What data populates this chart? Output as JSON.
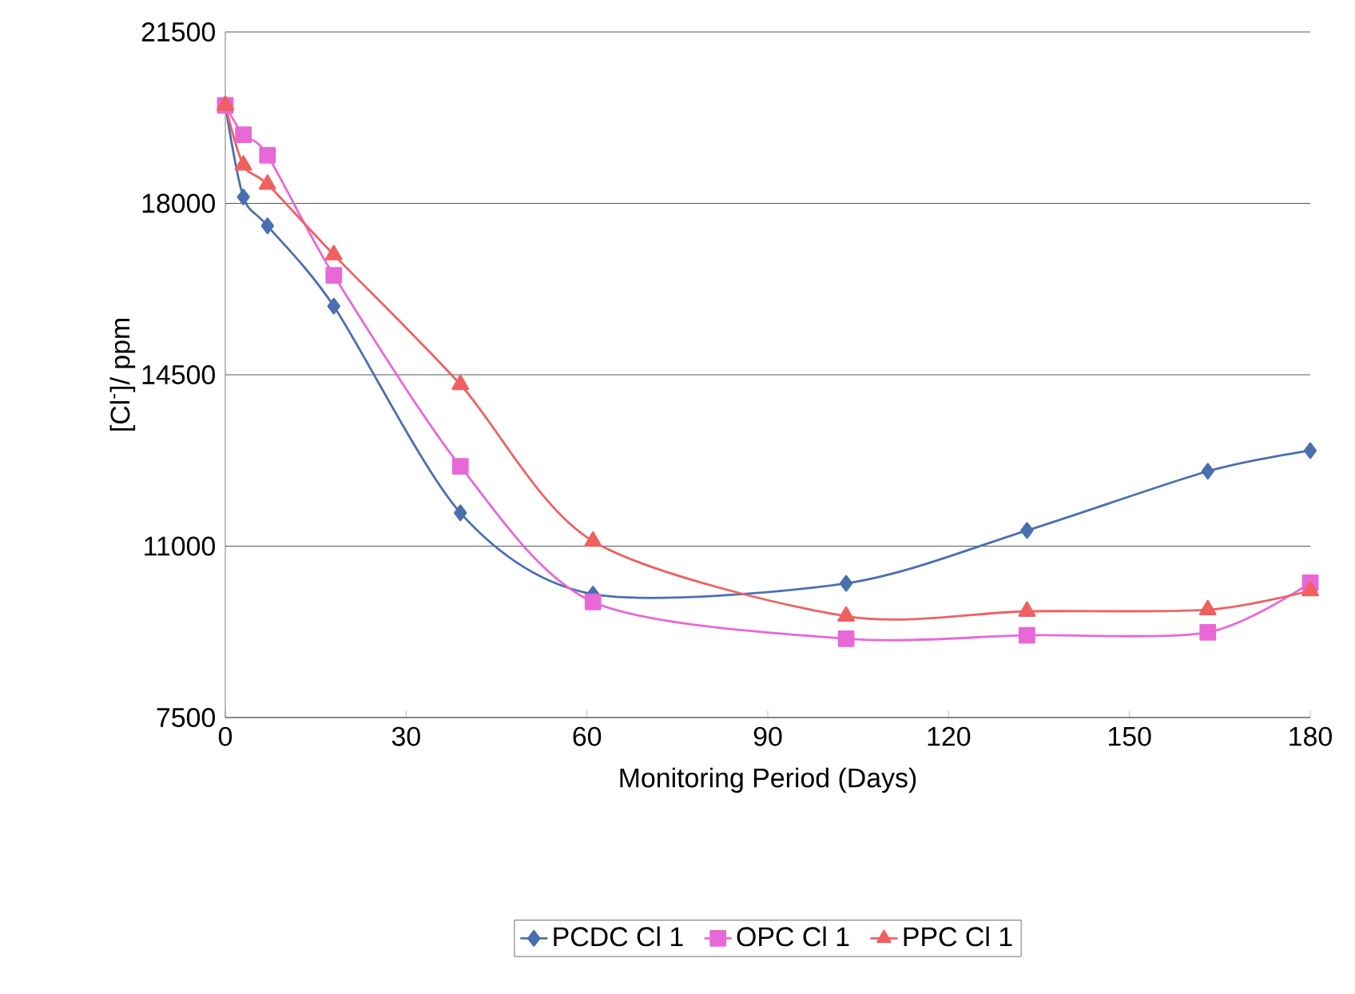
{
  "chart_data": {
    "type": "line",
    "xlabel": "Monitoring Period (Days)",
    "ylabel": "[Cl$^{-}$]/ ppm",
    "x": [
      0,
      3,
      7,
      18,
      39,
      61,
      103,
      133,
      163,
      180
    ],
    "series": [
      {
        "name": "PCDC Cl 1",
        "color": "#4a6fb0",
        "marker": "diamond",
        "values": [
          20000,
          18130,
          17540,
          15900,
          11680,
          10020,
          10240,
          11320,
          12530,
          12950
        ]
      },
      {
        "name": "OPC Cl 1",
        "color": "#e868d8",
        "marker": "square",
        "values": [
          20000,
          19400,
          18980,
          16530,
          12630,
          9860,
          9110,
          9180,
          9240,
          10250
        ]
      },
      {
        "name": "PPC Cl 1",
        "color": "#f06060",
        "marker": "triangle",
        "values": [
          20000,
          18780,
          18390,
          16950,
          14300,
          11100,
          9570,
          9670,
          9700,
          10090
        ]
      }
    ],
    "xlim": [
      0,
      180
    ],
    "xticks": [
      0,
      30,
      60,
      90,
      120,
      150,
      180
    ],
    "ylim": [
      7500,
      21500
    ],
    "yticks": [
      7500,
      11000,
      14500,
      18000,
      21500
    ],
    "grid": "y",
    "legend": "bottom",
    "line_style": "solid"
  }
}
